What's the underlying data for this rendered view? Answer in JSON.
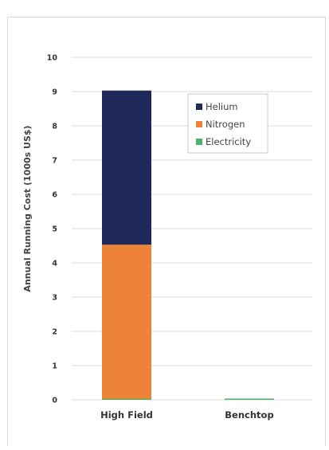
{
  "chart_data": {
    "type": "bar",
    "stacked": true,
    "categories": [
      "High Field",
      "Benchtop"
    ],
    "series": [
      {
        "name": "Electricity",
        "color": "#4caf6a",
        "values": [
          0.03,
          0.03
        ]
      },
      {
        "name": "Nitrogen",
        "color": "#ee8338",
        "values": [
          4.5,
          0
        ]
      },
      {
        "name": "Helium",
        "color": "#1f2a5a",
        "values": [
          4.5,
          0
        ]
      }
    ],
    "legend_order": [
      "Helium",
      "Nitrogen",
      "Electricity"
    ],
    "title": "",
    "xlabel": "",
    "ylabel": "Annual Running Cost (1000s US$)",
    "ylim": [
      0,
      10
    ],
    "yticks": [
      0,
      1,
      2,
      3,
      4,
      5,
      6,
      7,
      8,
      9,
      10
    ],
    "grid": true,
    "legend_position": "top-right"
  }
}
